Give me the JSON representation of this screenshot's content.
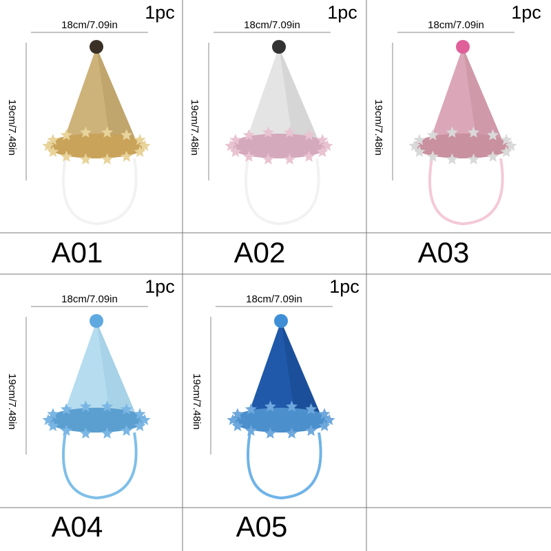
{
  "items": [
    {
      "quantity": "1pc",
      "width": "18cm/7.09in",
      "height": "19cm/7.48in",
      "code": "A01"
    },
    {
      "quantity": "1pc",
      "width": "18cm/7.09in",
      "height": "19cm/7.48in",
      "code": "A02"
    },
    {
      "quantity": "1pc",
      "width": "18cm/7.09in",
      "height": "19cm/7.48in",
      "code": "A03"
    },
    {
      "quantity": "1pc",
      "width": "18cm/7.09in",
      "height": "19cm/7.48in",
      "code": "A04"
    },
    {
      "quantity": "1pc",
      "width": "18cm/7.09in",
      "height": "19cm/7.48in",
      "code": "A05"
    }
  ]
}
